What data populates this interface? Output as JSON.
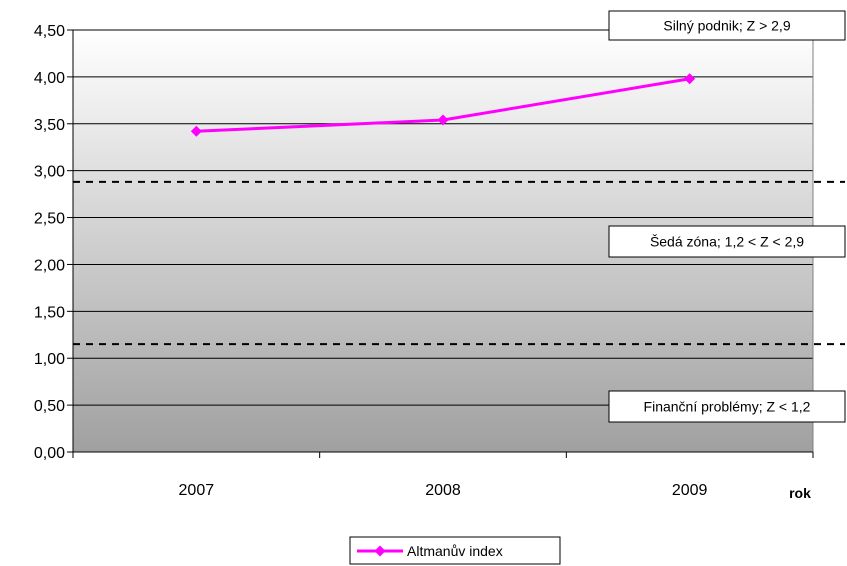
{
  "chart_data": {
    "type": "line",
    "categories": [
      "2007",
      "2008",
      "2009"
    ],
    "series": [
      {
        "name": "Altmanův index",
        "values": [
          3.42,
          3.54,
          3.98
        ],
        "color": "#ff00ff"
      }
    ],
    "xlabel": "rok",
    "ylabel": "",
    "ylim": [
      0,
      4.5
    ],
    "yticks": [
      "0,00",
      "0,50",
      "1,00",
      "1,50",
      "2,00",
      "2,50",
      "3,00",
      "3,50",
      "4,00",
      "4,50"
    ],
    "grid": true,
    "legend_position": "bottom",
    "thresholds": [
      {
        "value": 2.88,
        "style": "dashed"
      },
      {
        "value": 1.15,
        "style": "dashed"
      }
    ],
    "annotations": [
      {
        "text": "Silný podnik; Z > 2,9",
        "y": 4.5
      },
      {
        "text": "Šedá zóna; 1,2 < Z < 2,9",
        "y": 2.05
      },
      {
        "text": "Finanční problémy; Z < 1,2",
        "y": 0.05
      }
    ],
    "colors": {
      "line": "#ff00ff",
      "gradient_top": "#ffffff",
      "gradient_bottom": "#a0a0a0",
      "grid": "#000000"
    }
  }
}
